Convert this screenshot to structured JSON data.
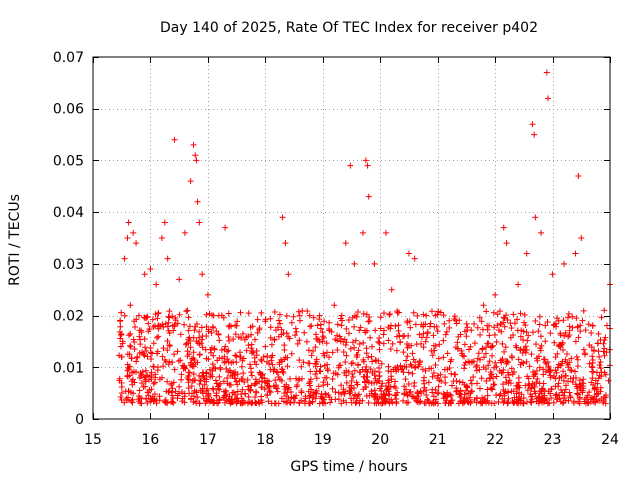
{
  "chart_data": {
    "type": "scatter",
    "title": "Day 140 of 2025, Rate Of TEC Index for receiver p402",
    "xlabel": "GPS time / hours",
    "ylabel": "ROTI / TECUs",
    "xlim": [
      15,
      24
    ],
    "ylim": [
      0,
      0.07
    ],
    "x_ticks": [
      "15",
      "16",
      "17",
      "18",
      "19",
      "20",
      "21",
      "22",
      "23",
      "24"
    ],
    "y_ticks": [
      "0",
      "0.01",
      "0.02",
      "0.03",
      "0.04",
      "0.05",
      "0.06",
      "0.07"
    ],
    "grid": true,
    "marker": "+",
    "series": [
      {
        "name": "ROTI",
        "color": "#ff0000",
        "points": [
          [
            15.5,
            0.012
          ],
          [
            15.55,
            0.031
          ],
          [
            15.6,
            0.035
          ],
          [
            15.62,
            0.038
          ],
          [
            15.65,
            0.022
          ],
          [
            15.7,
            0.036
          ],
          [
            15.75,
            0.034
          ],
          [
            15.8,
            0.02
          ],
          [
            15.9,
            0.028
          ],
          [
            16.0,
            0.029
          ],
          [
            16.1,
            0.026
          ],
          [
            16.2,
            0.035
          ],
          [
            16.25,
            0.038
          ],
          [
            16.3,
            0.031
          ],
          [
            16.42,
            0.054
          ],
          [
            16.5,
            0.027
          ],
          [
            16.6,
            0.036
          ],
          [
            16.7,
            0.046
          ],
          [
            16.75,
            0.053
          ],
          [
            16.78,
            0.051
          ],
          [
            16.8,
            0.05
          ],
          [
            16.82,
            0.042
          ],
          [
            16.85,
            0.038
          ],
          [
            16.9,
            0.028
          ],
          [
            17.0,
            0.024
          ],
          [
            17.1,
            0.02
          ],
          [
            17.3,
            0.037
          ],
          [
            17.5,
            0.018
          ],
          [
            17.7,
            0.016
          ],
          [
            18.0,
            0.014
          ],
          [
            18.3,
            0.039
          ],
          [
            18.35,
            0.034
          ],
          [
            18.4,
            0.028
          ],
          [
            18.6,
            0.02
          ],
          [
            18.8,
            0.018
          ],
          [
            19.0,
            0.016
          ],
          [
            19.2,
            0.022
          ],
          [
            19.4,
            0.034
          ],
          [
            19.48,
            0.049
          ],
          [
            19.55,
            0.03
          ],
          [
            19.7,
            0.036
          ],
          [
            19.75,
            0.05
          ],
          [
            19.78,
            0.049
          ],
          [
            19.8,
            0.043
          ],
          [
            19.9,
            0.03
          ],
          [
            20.1,
            0.036
          ],
          [
            20.2,
            0.025
          ],
          [
            20.5,
            0.032
          ],
          [
            20.6,
            0.031
          ],
          [
            20.8,
            0.02
          ],
          [
            21.0,
            0.017
          ],
          [
            21.2,
            0.019
          ],
          [
            21.5,
            0.016
          ],
          [
            21.8,
            0.022
          ],
          [
            22.0,
            0.024
          ],
          [
            22.15,
            0.037
          ],
          [
            22.2,
            0.034
          ],
          [
            22.4,
            0.026
          ],
          [
            22.55,
            0.032
          ],
          [
            22.65,
            0.057
          ],
          [
            22.68,
            0.055
          ],
          [
            22.7,
            0.039
          ],
          [
            22.8,
            0.036
          ],
          [
            22.9,
            0.067
          ],
          [
            22.92,
            0.062
          ],
          [
            23.0,
            0.028
          ],
          [
            23.2,
            0.03
          ],
          [
            23.4,
            0.032
          ],
          [
            23.45,
            0.047
          ],
          [
            23.5,
            0.035
          ],
          [
            23.7,
            0.018
          ],
          [
            23.9,
            0.021
          ],
          [
            24.0,
            0.026
          ]
        ]
      }
    ],
    "bulk_band": {
      "x_start": 15.45,
      "x_end": 24.0,
      "y_min": 0.003,
      "y_max": 0.021,
      "count": 1800
    }
  }
}
